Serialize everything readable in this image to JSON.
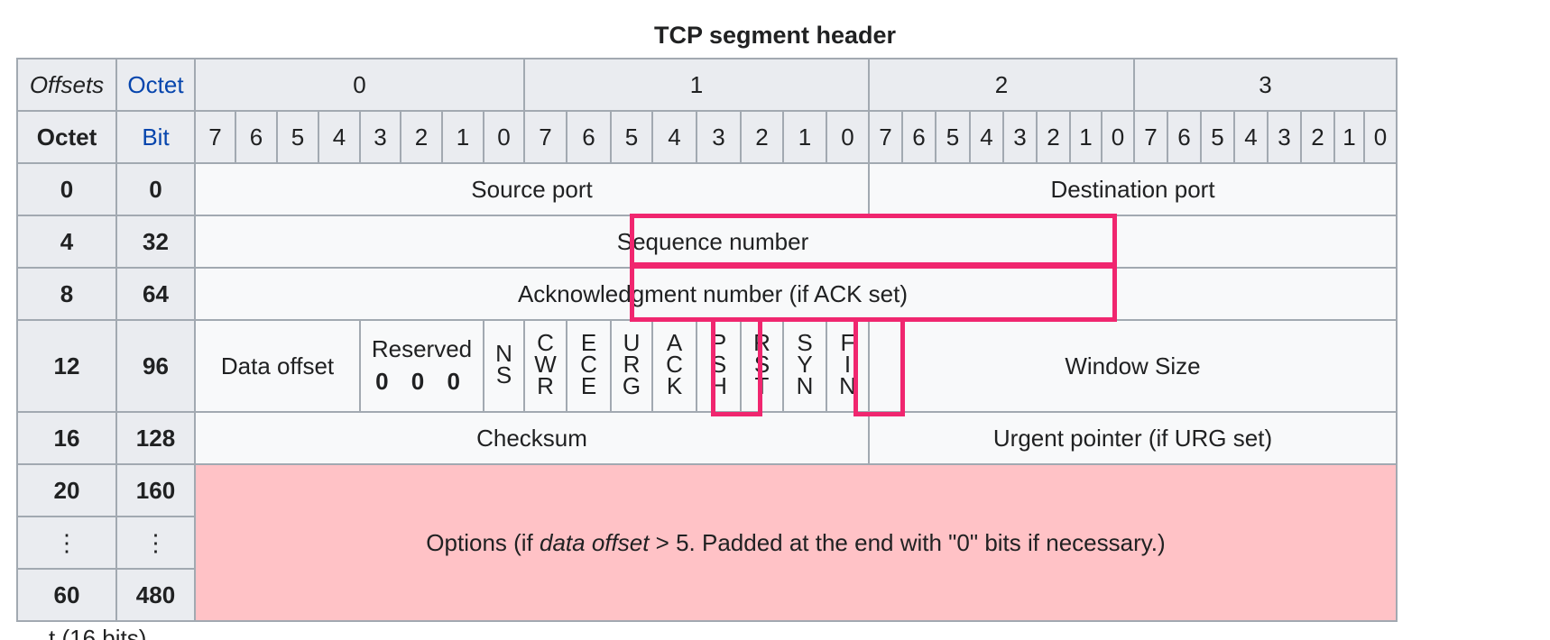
{
  "caption": "TCP segment header",
  "header": {
    "offsets": "Offsets",
    "octet_top": "Octet",
    "octet_left": "Octet",
    "bit": "Bit",
    "octet_groups": [
      "0",
      "1",
      "2",
      "3"
    ],
    "bits": [
      "7",
      "6",
      "5",
      "4",
      "3",
      "2",
      "1",
      "0",
      "7",
      "6",
      "5",
      "4",
      "3",
      "2",
      "1",
      "0",
      "7",
      "6",
      "5",
      "4",
      "3",
      "2",
      "1",
      "0",
      "7",
      "6",
      "5",
      "4",
      "3",
      "2",
      "1",
      "0"
    ]
  },
  "rows": [
    {
      "octet": "0",
      "bit": "0"
    },
    {
      "octet": "4",
      "bit": "32"
    },
    {
      "octet": "8",
      "bit": "64"
    },
    {
      "octet": "12",
      "bit": "96"
    },
    {
      "octet": "16",
      "bit": "128"
    },
    {
      "octet": "20",
      "bit": "160"
    },
    {
      "octet": "⋮",
      "bit": "⋮"
    },
    {
      "octet": "60",
      "bit": "480"
    }
  ],
  "fields": {
    "source_port": "Source port",
    "destination_port": "Destination port",
    "sequence_number": "Sequence number",
    "acknowledgment_number": "Acknowledgment number (if ACK set)",
    "data_offset": "Data offset",
    "reserved": "Reserved",
    "reserved_bits": "0 0 0",
    "window_size": "Window Size",
    "checksum": "Checksum",
    "urgent_pointer": "Urgent pointer (if URG set)",
    "options_prefix": "Options (if ",
    "options_italic": "data offset",
    "options_suffix": " > 5. Padded at the end with \"0\" bits if necessary.)"
  },
  "flags": [
    {
      "name": "NS",
      "letters": [
        "N",
        "S"
      ]
    },
    {
      "name": "CWR",
      "letters": [
        "C",
        "W",
        "R"
      ]
    },
    {
      "name": "ECE",
      "letters": [
        "E",
        "C",
        "E"
      ]
    },
    {
      "name": "URG",
      "letters": [
        "U",
        "R",
        "G"
      ]
    },
    {
      "name": "ACK",
      "letters": [
        "A",
        "C",
        "K"
      ]
    },
    {
      "name": "PSH",
      "letters": [
        "P",
        "S",
        "H"
      ]
    },
    {
      "name": "RST",
      "letters": [
        "R",
        "S",
        "T"
      ]
    },
    {
      "name": "SYN",
      "letters": [
        "S",
        "Y",
        "N"
      ]
    },
    {
      "name": "FIN",
      "letters": [
        "F",
        "I",
        "N"
      ]
    }
  ],
  "highlighted": [
    "Sequence number",
    "Acknowledgment number (if ACK set)",
    "ACK",
    "SYN"
  ],
  "colors": {
    "highlight": "#f0266f",
    "options_bg": "#ffc2c6",
    "header_bg": "#eaecf0",
    "cell_bg": "#f8f9fa",
    "border": "#a2a9b1",
    "link_blue": "#0645ad"
  },
  "partial_text": "…t (16 bits)"
}
